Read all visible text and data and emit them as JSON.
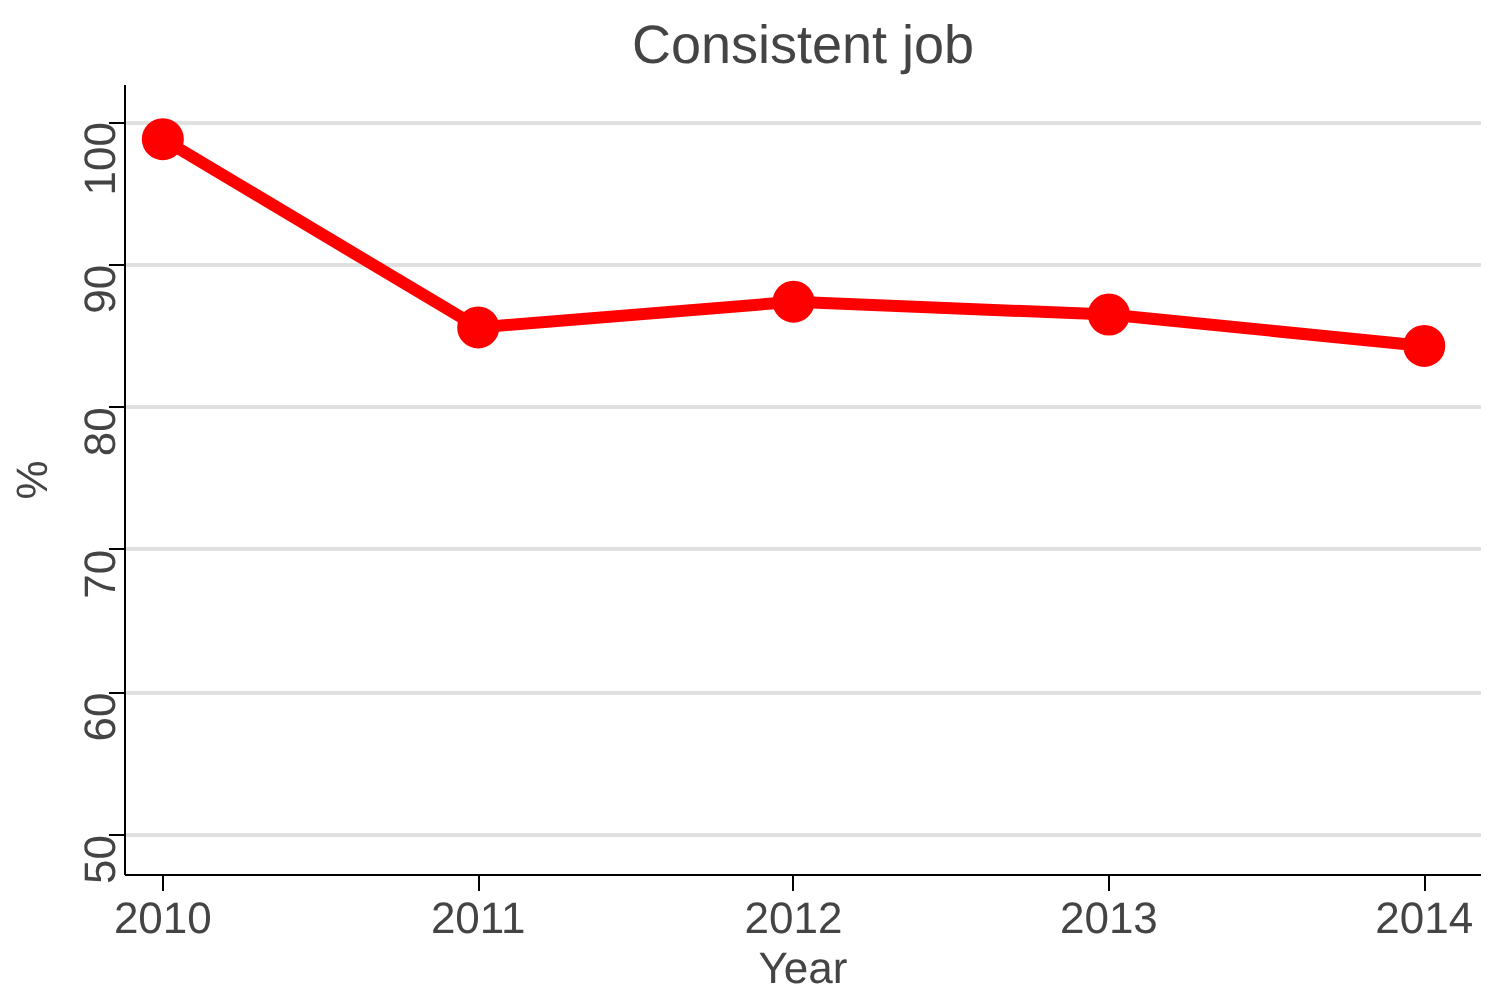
{
  "chart_data": {
    "type": "line",
    "title": "Consistent job",
    "xlabel": "Year",
    "ylabel": "%",
    "x": [
      2010,
      2011,
      2012,
      2013,
      2014
    ],
    "series": [
      {
        "color": "#ff0000",
        "values": [
          98.8,
          85.6,
          87.4,
          86.5,
          84.3
        ]
      }
    ],
    "xlim": [
      2009.88,
      2014.18
    ],
    "ylim": [
      47.2,
      102.6
    ],
    "xticks": [
      2010,
      2011,
      2012,
      2013,
      2014
    ],
    "yticks": [
      50,
      60,
      70,
      80,
      90,
      100
    ],
    "grid": "y",
    "marker": "circle",
    "line_style": "solid"
  }
}
